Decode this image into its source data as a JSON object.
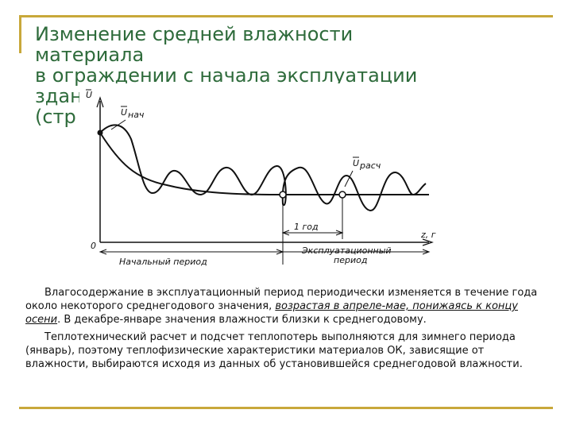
{
  "title": {
    "lines": [
      "Изменение средней влажности",
      "материала",
      "в ограждении с начала эксплуатации",
      "здания",
      "(стр"
    ]
  },
  "figure": {
    "axis_y_label": "U",
    "axis_x_label": "z, г",
    "origin_label": "0",
    "u_start_label": "U",
    "u_start_sub": "нач",
    "u_calc_label": "U",
    "u_calc_sub": "расч",
    "year_label": "1 год",
    "period_initial": "Начальный   период",
    "period_operation_1": "Эксплуатационный",
    "period_operation_2": "период"
  },
  "text": {
    "p1_before": "Влагосодержание в эксплуатационный период периодически изменяется в течение года около некоторого среднегодового значения, ",
    "p1_emph": "возрастая в апреле-мае, понижаясь к концу осени",
    "p1_after": ". В декабре-январе значения влажности близки к среднегодовому.",
    "p2": "Теплотехнический расчет и подсчет теплопотерь выполняются для зимнего периода (январь), поэтому теплофизические характеристики материалов ОК, зависящие от влажности, выбираются исходя из данных об установившейся среднегодовой влажности."
  },
  "colors": {
    "frame": "#c8a83a",
    "title": "#2e6b3b"
  }
}
